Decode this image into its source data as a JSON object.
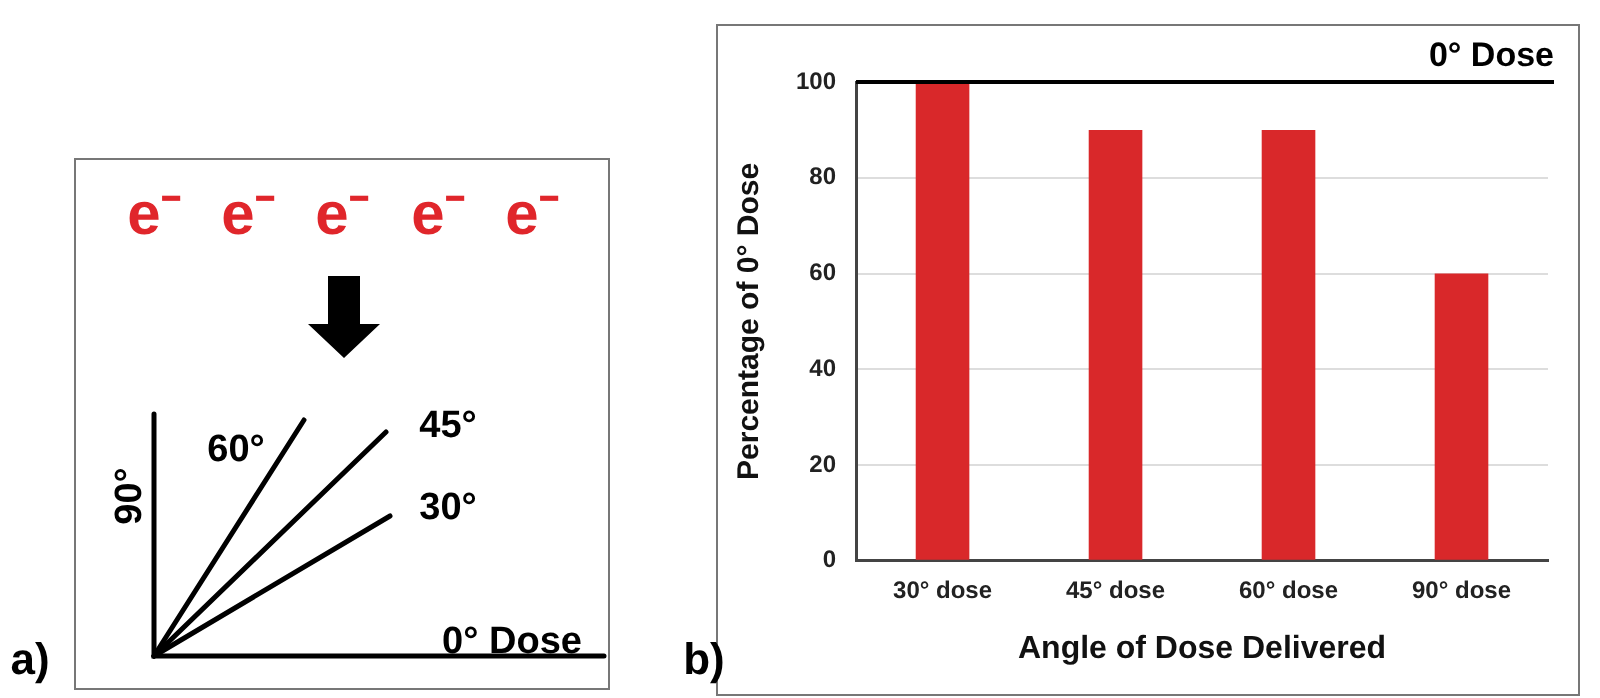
{
  "chart_data": [
    {
      "type": "other",
      "annotations": [
        "a)",
        "e⁻",
        "e⁻",
        "e⁻",
        "e⁻",
        "e⁻",
        "60°",
        "45°",
        "30°",
        "90°",
        "0° Dose"
      ]
    },
    {
      "type": "bar",
      "xlabel": "Angle of Dose Delivered",
      "ylabel": "Percentage of 0° Dose",
      "categories": [
        "30° dose",
        "45° dose",
        "60° dose",
        "90° dose"
      ],
      "values": [
        100,
        90,
        90,
        60
      ],
      "color": "#d9282a",
      "ylim": [
        0,
        100
      ],
      "yticks": [
        0,
        20,
        40,
        60,
        80,
        100
      ],
      "grid": "y",
      "ref_lines": [
        {
          "axis": "y",
          "value": 100,
          "label": "0° Dose",
          "color": "#000000"
        }
      ],
      "annotations": [
        "b)"
      ]
    }
  ]
}
